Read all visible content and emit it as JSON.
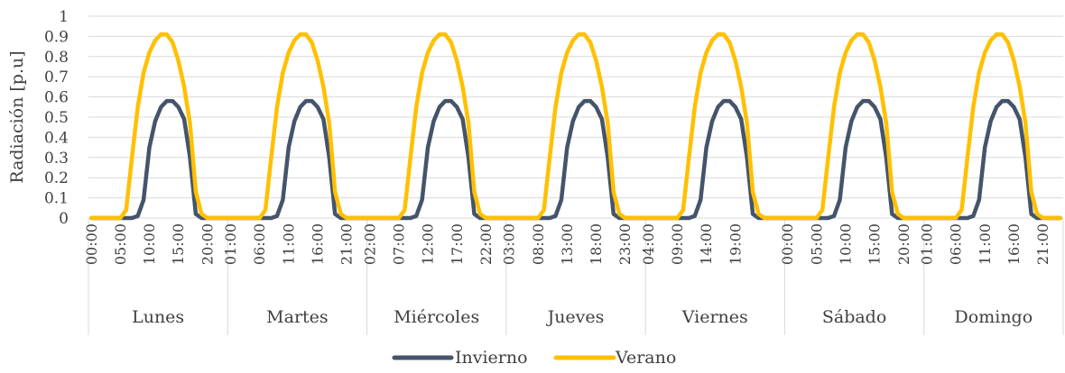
{
  "chart_data": {
    "type": "line",
    "title": "",
    "ylabel": "Radiación [p.u]",
    "xlabel": "",
    "ylim": [
      0,
      1
    ],
    "yticks": [
      0,
      0.1,
      0.2,
      0.3,
      0.4,
      0.5,
      0.6,
      0.7,
      0.8,
      0.9,
      1
    ],
    "ytick_labels": [
      "0",
      "0.1",
      "0.2",
      "0.3",
      "0.4",
      "0.5",
      "0.6",
      "0.7",
      "0.8",
      "0.9",
      "1"
    ],
    "grid": true,
    "legend_position": "bottom",
    "hours_per_day": 24,
    "days": [
      "Lunes",
      "Martes",
      "Miércoles",
      "Jueves",
      "Viernes",
      "Sábado",
      "Domingo"
    ],
    "x_tick_labels": [
      [
        "00:00",
        "05:00",
        "10:00",
        "15:00",
        "20:00"
      ],
      [
        "01:00",
        "06:00",
        "11:00",
        "16:00",
        "21:00"
      ],
      [
        "02:00",
        "07:00",
        "12:00",
        "17:00",
        "22:00"
      ],
      [
        "03:00",
        "08:00",
        "13:00",
        "18:00",
        "23:00"
      ],
      [
        "04:00",
        "09:00",
        "14:00",
        "19:00"
      ],
      [
        "00:00",
        "05:00",
        "10:00",
        "15:00",
        "20:00"
      ],
      [
        "01:00",
        "06:00",
        "11:00",
        "16:00",
        "21:00"
      ]
    ],
    "series": [
      {
        "name": "Invierno",
        "color": "#44546a",
        "daily_values": [
          0,
          0,
          0,
          0,
          0,
          0,
          0,
          0,
          0.01,
          0.09,
          0.35,
          0.48,
          0.55,
          0.58,
          0.58,
          0.55,
          0.49,
          0.3,
          0.02,
          0,
          0,
          0,
          0,
          0
        ]
      },
      {
        "name": "Verano",
        "color": "#ffc000",
        "daily_values": [
          0,
          0,
          0,
          0,
          0,
          0,
          0.04,
          0.3,
          0.55,
          0.72,
          0.82,
          0.88,
          0.91,
          0.91,
          0.87,
          0.78,
          0.65,
          0.47,
          0.13,
          0.02,
          0,
          0,
          0,
          0
        ]
      }
    ]
  }
}
